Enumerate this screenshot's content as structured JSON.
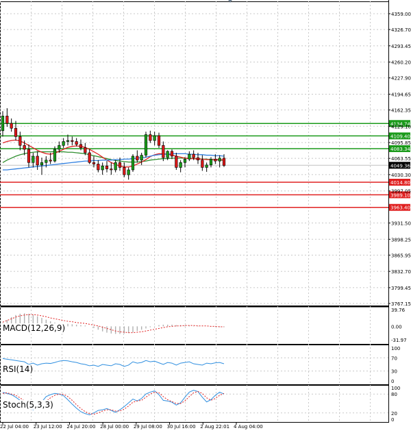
{
  "chart_data": [
    {
      "type": "candlestick",
      "panel": "price",
      "ylim": [
        3767.15,
        4359.0
      ],
      "y_ticks": [
        "4359.00",
        "4326.70",
        "4293.45",
        "4260.20",
        "4227.90",
        "4194.65",
        "4162.35",
        "4129.10",
        "4095.85",
        "4063.55",
        "4030.30",
        "3997.05",
        "3931.50",
        "3898.25",
        "3865.95",
        "3832.70",
        "3799.45",
        "3767.15"
      ],
      "x_ticks": [
        "22 Jul 04:00",
        "23 Jul 12:00",
        "24 Jul 20:00",
        "28 Jul 00:00",
        "29 Jul 08:00",
        "30 Jul 16:00",
        "2 Aug 22:01",
        "4 Aug 04:00"
      ],
      "grid": true,
      "candles": [
        [
          4120,
          4160,
          4108,
          4150
        ],
        [
          4150,
          4166,
          4128,
          4135
        ],
        [
          4135,
          4145,
          4118,
          4125
        ],
        [
          4125,
          4140,
          4100,
          4108
        ],
        [
          4108,
          4118,
          4080,
          4090
        ],
        [
          4090,
          4100,
          4070,
          4082
        ],
        [
          4082,
          4092,
          4045,
          4055
        ],
        [
          4055,
          4075,
          4045,
          4068
        ],
        [
          4068,
          4078,
          4040,
          4050
        ],
        [
          4050,
          4065,
          4030,
          4055
        ],
        [
          4055,
          4068,
          4045,
          4060
        ],
        [
          4060,
          4075,
          4052,
          4058
        ],
        [
          4058,
          4088,
          4055,
          4082
        ],
        [
          4082,
          4098,
          4075,
          4090
        ],
        [
          4090,
          4105,
          4085,
          4098
        ],
        [
          4098,
          4112,
          4090,
          4100
        ],
        [
          4100,
          4108,
          4090,
          4098
        ],
        [
          4098,
          4105,
          4088,
          4092
        ],
        [
          4092,
          4102,
          4080,
          4085
        ],
        [
          4085,
          4095,
          4070,
          4075
        ],
        [
          4075,
          4082,
          4052,
          4055
        ],
        [
          4055,
          4068,
          4045,
          4052
        ],
        [
          4052,
          4060,
          4035,
          4040
        ],
        [
          4040,
          4055,
          4030,
          4048
        ],
        [
          4048,
          4058,
          4035,
          4042
        ],
        [
          4042,
          4055,
          4030,
          4040
        ],
        [
          4040,
          4060,
          4035,
          4055
        ],
        [
          4055,
          4065,
          4038,
          4045
        ],
        [
          4045,
          4055,
          4025,
          4030
        ],
        [
          4030,
          4045,
          4020,
          4040
        ],
        [
          4040,
          4072,
          4036,
          4068
        ],
        [
          4068,
          4080,
          4055,
          4060
        ],
        [
          4060,
          4075,
          4050,
          4070
        ],
        [
          4070,
          4118,
          4065,
          4112
        ],
        [
          4112,
          4120,
          4095,
          4100
        ],
        [
          4100,
          4118,
          4090,
          4110
        ],
        [
          4110,
          4116,
          4085,
          4090
        ],
        [
          4090,
          4098,
          4058,
          4065
        ],
        [
          4065,
          4080,
          4060,
          4078
        ],
        [
          4078,
          4082,
          4062,
          4068
        ],
        [
          4068,
          4075,
          4040,
          4045
        ],
        [
          4045,
          4060,
          4035,
          4055
        ],
        [
          4055,
          4066,
          4045,
          4062
        ],
        [
          4062,
          4078,
          4058,
          4072
        ],
        [
          4072,
          4080,
          4060,
          4065
        ],
        [
          4065,
          4075,
          4052,
          4060
        ],
        [
          4060,
          4070,
          4038,
          4045
        ],
        [
          4045,
          4055,
          4036,
          4050
        ],
        [
          4050,
          4066,
          4045,
          4062
        ],
        [
          4062,
          4072,
          4052,
          4058
        ],
        [
          4058,
          4070,
          4045,
          4064
        ],
        [
          4064,
          4072,
          4046,
          4049
        ]
      ],
      "moving_averages": [
        {
          "color": "#2f8f2f",
          "values": [
            4055,
            4060,
            4064,
            4068,
            4071,
            4073,
            4075,
            4076,
            4077,
            4077,
            4077,
            4077,
            4077,
            4077,
            4077,
            4076,
            4076,
            4075,
            4074,
            4073,
            4071,
            4069,
            4067,
            4065,
            4063,
            4061,
            4059,
            4058,
            4057,
            4056,
            4056,
            4056,
            4057,
            4058,
            4060,
            4061,
            4062,
            4063,
            4063,
            4064,
            4064,
            4064,
            4064,
            4064,
            4063,
            4063,
            4062,
            4062,
            4061,
            4061,
            4060,
            4060
          ]
        },
        {
          "color": "#e02020",
          "values": [
            4095,
            4098,
            4100,
            4101,
            4099,
            4095,
            4090,
            4085,
            4080,
            4076,
            4073,
            4072,
            4074,
            4078,
            4082,
            4086,
            4088,
            4089,
            4088,
            4086,
            4082,
            4077,
            4072,
            4066,
            4060,
            4055,
            4051,
            4048,
            4046,
            4046,
            4048,
            4052,
            4056,
            4061,
            4067,
            4071,
            4073,
            4073,
            4072,
            4070,
            4068,
            4066,
            4064,
            4063,
            4063,
            4062,
            4062,
            4061,
            4061,
            4061,
            4061,
            4060
          ]
        },
        {
          "color": "#2f7fe0",
          "values": [
            4040,
            4040,
            4041,
            4042,
            4043,
            4044,
            4045,
            4046,
            4047,
            4048,
            4049,
            4050,
            4051,
            4052,
            4053,
            4054,
            4055,
            4056,
            4057,
            4058,
            4058,
            4059,
            4059,
            4060,
            4060,
            4060,
            4061,
            4061,
            4062,
            4062,
            4063,
            4064,
            4065,
            4066,
            4068,
            4070,
            4071,
            4072,
            4072,
            4073,
            4073,
            4073,
            4073,
            4072,
            4072,
            4071,
            4071,
            4070,
            4070,
            4069,
            4069,
            4068
          ]
        }
      ],
      "levels": [
        {
          "value": 4134.74,
          "label": "4134.74",
          "color": "#1a9a1a"
        },
        {
          "value": 4109.4,
          "label": "4109.40",
          "color": "#1a9a1a"
        },
        {
          "value": 4083.34,
          "label": "4083.34",
          "color": "#1a9a1a"
        },
        {
          "value": 4014.8,
          "label": "4014.80",
          "color": "#e02020"
        },
        {
          "value": 3989.1,
          "label": "3989.10",
          "color": "#e02020"
        },
        {
          "value": 3963.4,
          "label": "3963.40",
          "color": "#e02020"
        }
      ],
      "current_price": {
        "value": 4049.36,
        "label": "4049.36"
      }
    },
    {
      "type": "histogram",
      "panel": "macd",
      "title": "MACD(12,26,9)",
      "ylim": [
        -31.97,
        39.76
      ],
      "y_ticks": [
        "39.76",
        "0.00",
        "-31.97"
      ],
      "histogram": [
        8,
        15,
        22,
        27,
        30,
        31,
        30,
        28,
        24,
        20,
        16,
        12,
        9,
        7,
        6,
        6,
        5,
        4,
        3,
        2,
        0,
        -4,
        -8,
        -12,
        -15,
        -17,
        -18,
        -18,
        -17,
        -16,
        -14,
        -11,
        -8,
        -5,
        -2,
        1,
        3,
        4,
        4,
        4,
        3,
        3,
        2,
        2,
        1,
        1,
        0,
        0,
        -1,
        -1,
        -2,
        -2
      ],
      "signal": [
        10,
        14,
        18,
        22,
        25,
        27,
        28,
        28,
        27,
        25,
        23,
        20,
        18,
        16,
        14,
        12,
        11,
        9,
        8,
        7,
        5,
        3,
        1,
        -2,
        -5,
        -8,
        -11,
        -13,
        -14,
        -15,
        -15,
        -14,
        -13,
        -11,
        -9,
        -7,
        -5,
        -3,
        -1,
        0,
        1,
        1,
        2,
        2,
        2,
        1,
        1,
        1,
        0,
        0,
        -1,
        -1
      ],
      "signal_color": "#e02020"
    },
    {
      "type": "line",
      "panel": "rsi",
      "title": "RSI(14)",
      "ylim": [
        0,
        100
      ],
      "y_ticks": [
        "100",
        "70",
        "30",
        "0"
      ],
      "values": [
        68,
        66,
        64,
        62,
        60,
        58,
        50,
        54,
        48,
        52,
        54,
        53,
        56,
        60,
        62,
        61,
        58,
        56,
        52,
        50,
        46,
        48,
        44,
        50,
        48,
        46,
        52,
        50,
        44,
        48,
        58,
        54,
        56,
        62,
        58,
        60,
        55,
        50,
        56,
        54,
        48,
        54,
        56,
        58,
        52,
        50,
        48,
        54,
        52,
        55,
        56,
        52
      ],
      "color": "#2f8fe0"
    },
    {
      "type": "line",
      "panel": "stochastic",
      "title": "Stoch(5,3,3)",
      "ylim": [
        0,
        100
      ],
      "y_ticks": [
        "100",
        "80",
        "20",
        "0"
      ],
      "series": [
        {
          "color": "#2f8fe0",
          "style": "solid",
          "values": [
            85,
            82,
            78,
            70,
            60,
            50,
            38,
            30,
            38,
            55,
            72,
            78,
            82,
            80,
            75,
            62,
            48,
            35,
            24,
            18,
            14,
            20,
            28,
            30,
            34,
            28,
            22,
            30,
            40,
            52,
            64,
            58,
            66,
            80,
            86,
            90,
            78,
            60,
            58,
            54,
            45,
            52,
            70,
            86,
            92,
            88,
            70,
            55,
            62,
            76,
            86,
            80
          ]
        },
        {
          "color": "#e02020",
          "style": "dashed",
          "values": [
            82,
            84,
            80,
            76,
            68,
            58,
            48,
            38,
            34,
            42,
            56,
            68,
            76,
            80,
            79,
            72,
            60,
            46,
            34,
            24,
            18,
            16,
            20,
            26,
            30,
            30,
            26,
            26,
            32,
            42,
            54,
            58,
            60,
            70,
            80,
            86,
            84,
            72,
            62,
            56,
            50,
            50,
            58,
            72,
            84,
            88,
            82,
            68,
            60,
            66,
            76,
            82
          ]
        }
      ]
    }
  ]
}
